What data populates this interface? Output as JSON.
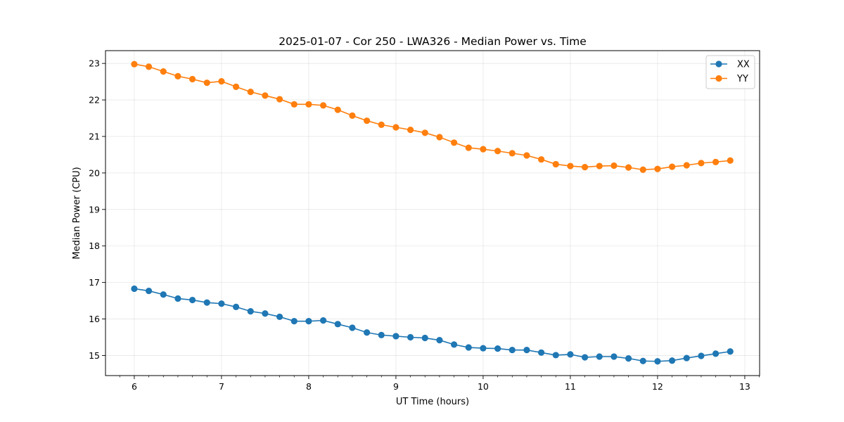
{
  "chart_data": {
    "type": "line",
    "title": "2025-01-07 - Cor 250 - LWA326 - Median Power vs. Time",
    "xlabel": "UT Time (hours)",
    "ylabel": "Median Power (CPU)",
    "xlim": [
      5.67,
      13.17
    ],
    "ylim": [
      14.45,
      23.35
    ],
    "xticks": [
      6,
      7,
      8,
      9,
      10,
      11,
      12,
      13
    ],
    "xtick_labels": [
      "6",
      "7",
      "8",
      "9",
      "10",
      "11",
      "12",
      "13"
    ],
    "yticks": [
      15,
      16,
      17,
      18,
      19,
      20,
      21,
      22,
      23
    ],
    "ytick_labels": [
      "15",
      "16",
      "17",
      "18",
      "19",
      "20",
      "21",
      "22",
      "23"
    ],
    "grid": true,
    "legend_position": "top-right",
    "x": [
      6.0,
      6.1667,
      6.3333,
      6.5,
      6.6667,
      6.8333,
      7.0,
      7.1667,
      7.3333,
      7.5,
      7.6667,
      7.8333,
      8.0,
      8.1667,
      8.3333,
      8.5,
      8.6667,
      8.8333,
      9.0,
      9.1667,
      9.3333,
      9.5,
      9.6667,
      9.8333,
      10.0,
      10.1667,
      10.3333,
      10.5,
      10.6667,
      10.8333,
      11.0,
      11.1667,
      11.3333,
      11.5,
      11.6667,
      11.8333,
      12.0,
      12.1667,
      12.3333,
      12.5,
      12.6667,
      12.8333
    ],
    "series": [
      {
        "name": "XX",
        "color": "#1f77b4",
        "values": [
          16.83,
          16.77,
          16.67,
          16.56,
          16.52,
          16.45,
          16.42,
          16.33,
          16.21,
          16.15,
          16.06,
          15.94,
          15.94,
          15.96,
          15.86,
          15.76,
          15.63,
          15.56,
          15.53,
          15.5,
          15.48,
          15.42,
          15.3,
          15.22,
          15.2,
          15.19,
          15.15,
          15.15,
          15.08,
          15.01,
          15.03,
          14.95,
          14.97,
          14.97,
          14.92,
          14.85,
          14.84,
          14.86,
          14.93,
          14.99,
          15.05,
          15.11
        ]
      },
      {
        "name": "YY",
        "color": "#ff7f0e",
        "values": [
          22.98,
          22.91,
          22.78,
          22.65,
          22.57,
          22.47,
          22.51,
          22.36,
          22.22,
          22.12,
          22.02,
          21.88,
          21.88,
          21.85,
          21.73,
          21.57,
          21.43,
          21.32,
          21.25,
          21.18,
          21.1,
          20.98,
          20.83,
          20.69,
          20.65,
          20.6,
          20.54,
          20.48,
          20.37,
          20.24,
          20.19,
          20.16,
          20.19,
          20.2,
          20.15,
          20.09,
          20.11,
          20.17,
          20.21,
          20.27,
          20.3,
          20.34
        ]
      }
    ]
  }
}
